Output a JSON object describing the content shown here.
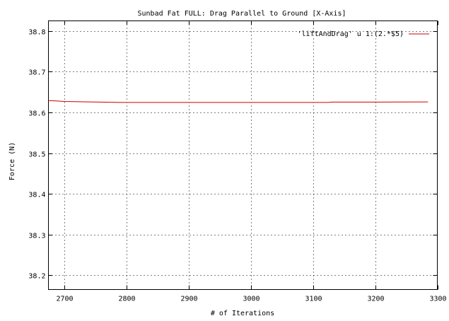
{
  "chart_data": {
    "type": "line",
    "title": "Sunbad Fat FULL: Drag Parallel to Ground [X-Axis]",
    "xlabel": "# of Iterations",
    "ylabel": "Force (N)",
    "xlim": [
      2675,
      3300
    ],
    "ylim": [
      38.165,
      38.825
    ],
    "xticks": [
      2700,
      2800,
      2900,
      3000,
      3100,
      3200,
      3300
    ],
    "yticks": [
      38.2,
      38.3,
      38.4,
      38.5,
      38.6,
      38.7,
      38.8
    ],
    "xtick_labels": [
      "2700",
      "2800",
      "2900",
      "3000",
      "3100",
      "3200",
      "3300"
    ],
    "ytick_labels": [
      "38.2",
      "38.3",
      "38.4",
      "38.5",
      "38.6",
      "38.7",
      "38.8"
    ],
    "grid": true,
    "legend_position": "top-right",
    "series": [
      {
        "name": "'liftAndDrag' u 1:(2.*$5)",
        "color": "#cc0000",
        "x": [
          2675,
          2690,
          2700,
          2740,
          2790,
          2850,
          2950,
          3050,
          3125,
          3130,
          3200,
          3285
        ],
        "y": [
          38.629,
          38.628,
          38.627,
          38.626,
          38.6245,
          38.6245,
          38.6245,
          38.6245,
          38.6245,
          38.6255,
          38.6255,
          38.626
        ]
      }
    ]
  }
}
